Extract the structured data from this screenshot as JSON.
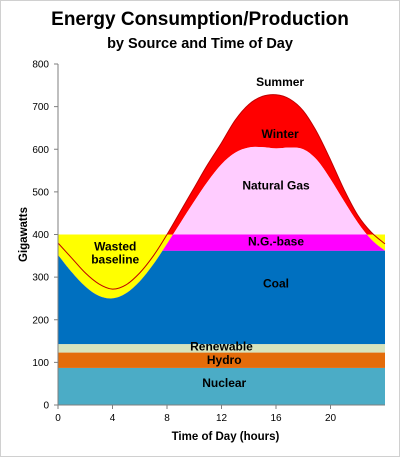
{
  "chart_data": {
    "type": "area",
    "title": "Energy Consumption/Production",
    "subtitle": "by Source and Time of Day",
    "xlabel": "Time of Day (hours)",
    "ylabel": "Gigawatts",
    "xlim": [
      0,
      24
    ],
    "ylim": [
      0,
      800
    ],
    "x_ticks": [
      0,
      4,
      8,
      12,
      16,
      20
    ],
    "y_ticks": [
      0,
      100,
      200,
      300,
      400,
      500,
      600,
      700,
      800
    ],
    "grid": false,
    "colors": {
      "nuclear": "#4bacc6",
      "hydro": "#e46c0a",
      "renewable": "#d7e4bd",
      "coal": "#0070c0",
      "ng_base": "#ff00ff",
      "natural_gas": "#ffccff",
      "winter": "#ff0000",
      "wasted": "#ffff00",
      "summer_line": "#c00000"
    },
    "bands": [
      {
        "name": "Nuclear",
        "from": 0,
        "to": 87
      },
      {
        "name": "Hydro",
        "from": 87,
        "to": 123
      },
      {
        "name": "Renewable",
        "from": 123,
        "to": 143
      },
      {
        "name": "Coal",
        "from": 143,
        "to": 362
      },
      {
        "name": "N.G.-base",
        "from": 362,
        "to": 400
      }
    ],
    "demand_winter": {
      "x": [
        0,
        1,
        2,
        3,
        4,
        5,
        6,
        7,
        8,
        9,
        10,
        11,
        12,
        13,
        14,
        15,
        16,
        17,
        18,
        19,
        20,
        21,
        22,
        23,
        24
      ],
      "y": [
        352,
        312,
        278,
        256,
        250,
        262,
        290,
        330,
        378,
        428,
        478,
        525,
        565,
        592,
        604,
        605,
        602,
        604,
        600,
        575,
        530,
        478,
        428,
        388,
        362
      ]
    },
    "demand_summer": {
      "x": [
        0,
        1,
        2,
        3,
        4,
        5,
        6,
        7,
        8,
        9,
        10,
        11,
        12,
        13,
        14,
        15,
        16,
        17,
        18,
        19,
        20,
        21,
        22,
        23,
        24
      ],
      "y": [
        380,
        345,
        310,
        284,
        272,
        282,
        310,
        350,
        400,
        455,
        510,
        565,
        615,
        668,
        705,
        724,
        728,
        718,
        690,
        640,
        575,
        505,
        445,
        405,
        378
      ]
    },
    "annotations": {
      "summer": "Summer",
      "winter": "Winter",
      "natural_gas": "Natural Gas",
      "ng_base": "N.G.-base",
      "coal": "Coal",
      "renewable": "Renewable",
      "hydro": "Hydro",
      "nuclear": "Nuclear",
      "wasted_line1": "Wasted",
      "wasted_line2": "baseline"
    }
  }
}
